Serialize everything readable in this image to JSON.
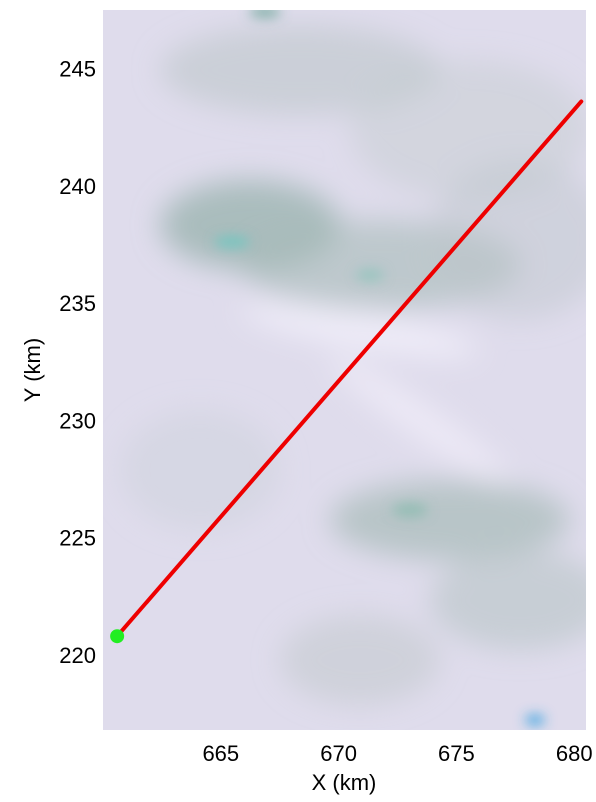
{
  "chart_data": {
    "type": "line",
    "title": "",
    "xlabel": "X (km)",
    "ylabel": "Y (km)",
    "xlim": [
      660.0,
      680.5
    ],
    "ylim": [
      216.8,
      247.5
    ],
    "xticks": [
      665,
      670,
      675,
      680
    ],
    "yticks": [
      220,
      225,
      230,
      235,
      240,
      245
    ],
    "grid": false,
    "legend": "none",
    "background": "satellite image of snow and ice terrain",
    "series": [
      {
        "x": [
          660.6,
          680.3
        ],
        "y": [
          220.8,
          243.6
        ],
        "color": "#ee0000"
      }
    ],
    "markers": [
      {
        "x": 660.6,
        "y": 220.8,
        "color": "#22ee22"
      }
    ]
  }
}
